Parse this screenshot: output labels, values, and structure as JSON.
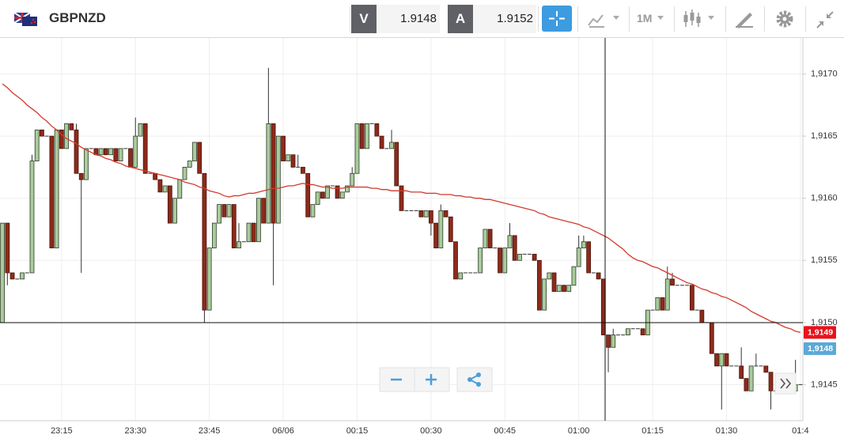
{
  "toolbar": {
    "symbol": "GBPNZD",
    "bid_label": "V",
    "bid": 1.9148,
    "ask_label": "A",
    "ask": 1.9152,
    "timeframe": "1M"
  },
  "chart_data": {
    "type": "candlestick",
    "categories": [
      null,
      null,
      null,
      null,
      null,
      null,
      null,
      null,
      null,
      null,
      null,
      null,
      "23:15",
      null,
      null,
      null,
      null,
      null,
      null,
      null,
      null,
      null,
      null,
      null,
      null,
      null,
      null,
      "23:30",
      null,
      null,
      null,
      null,
      null,
      null,
      null,
      null,
      null,
      null,
      null,
      null,
      null,
      null,
      "23:45",
      null,
      null,
      null,
      null,
      null,
      null,
      null,
      null,
      null,
      null,
      null,
      null,
      null,
      null,
      "06/06",
      null,
      null,
      null,
      null,
      null,
      null,
      null,
      null,
      null,
      null,
      null,
      null,
      null,
      null,
      "00:15",
      null,
      null,
      null,
      null,
      null,
      null,
      null,
      null,
      null,
      null,
      null,
      null,
      null,
      null,
      "00:30",
      null,
      null,
      null,
      null,
      null,
      null,
      null,
      null,
      null,
      null,
      null,
      null,
      null,
      null,
      "00:45",
      null,
      null,
      null,
      null,
      null,
      null,
      null,
      null,
      null,
      null,
      null,
      null,
      null,
      null,
      "01:00",
      null,
      null,
      null,
      null,
      null,
      null,
      null,
      null,
      null,
      null,
      null,
      null,
      null,
      null,
      "01:15",
      null,
      null,
      null,
      null,
      null,
      null,
      null,
      null,
      null,
      null,
      null,
      null,
      null,
      null,
      "01:30",
      null,
      null,
      null,
      null,
      null,
      null,
      null,
      null,
      null,
      null,
      null,
      null,
      null,
      null,
      "01:4"
    ],
    "ohlc": [
      [
        1.915,
        1.9158,
        1.915,
        1.9158
      ],
      [
        1.9158,
        1.9158,
        1.9153,
        1.9154
      ],
      [
        1.9154,
        1.9154,
        1.91535,
        1.91535
      ],
      [
        1.91535,
        1.91535,
        1.91535,
        1.91535
      ],
      [
        1.91535,
        1.9154,
        1.91535,
        1.9154
      ],
      [
        1.9154,
        1.9154,
        1.9154,
        1.9154
      ],
      [
        1.9154,
        1.91635,
        1.9154,
        1.9163
      ],
      [
        1.9163,
        1.91655,
        1.9163,
        1.91655
      ],
      [
        1.91655,
        1.91655,
        1.9165,
        1.9165
      ],
      [
        1.9165,
        1.9165,
        1.9165,
        1.9165
      ],
      [
        1.9165,
        1.9165,
        1.9156,
        1.9156
      ],
      [
        1.9156,
        1.91655,
        1.9156,
        1.91655
      ],
      [
        1.91655,
        1.91655,
        1.9164,
        1.9164
      ],
      [
        1.9164,
        1.9166,
        1.9164,
        1.9166
      ],
      [
        1.9166,
        1.9166,
        1.91655,
        1.91655
      ],
      [
        1.91655,
        1.9166,
        1.9162,
        1.9162
      ],
      [
        1.9162,
        1.9162,
        1.9154,
        1.91615
      ],
      [
        1.91615,
        1.9164,
        1.91615,
        1.9164
      ],
      [
        1.9164,
        1.9164,
        1.9164,
        1.9164
      ],
      [
        1.9164,
        1.9164,
        1.91635,
        1.91635
      ],
      [
        1.91635,
        1.9164,
        1.91635,
        1.9164
      ],
      [
        1.9164,
        1.9164,
        1.91635,
        1.91635
      ],
      [
        1.91635,
        1.9164,
        1.91635,
        1.9164
      ],
      [
        1.9164,
        1.9164,
        1.9163,
        1.9163
      ],
      [
        1.9163,
        1.9164,
        1.9163,
        1.9164
      ],
      [
        1.9164,
        1.9164,
        1.9164,
        1.9164
      ],
      [
        1.9164,
        1.9164,
        1.91625,
        1.91625
      ],
      [
        1.91625,
        1.91665,
        1.91625,
        1.9165
      ],
      [
        1.9165,
        1.9166,
        1.9165,
        1.9166
      ],
      [
        1.9166,
        1.9166,
        1.9162,
        1.9162
      ],
      [
        1.9162,
        1.9162,
        1.9162,
        1.9162
      ],
      [
        1.9162,
        1.9162,
        1.91615,
        1.91615
      ],
      [
        1.91615,
        1.91615,
        1.91605,
        1.91605
      ],
      [
        1.91605,
        1.9161,
        1.91605,
        1.9161
      ],
      [
        1.9161,
        1.9161,
        1.9158,
        1.9158
      ],
      [
        1.9158,
        1.916,
        1.9158,
        1.916
      ],
      [
        1.916,
        1.91615,
        1.916,
        1.91615
      ],
      [
        1.91615,
        1.91625,
        1.91615,
        1.91625
      ],
      [
        1.91625,
        1.9163,
        1.91625,
        1.9163
      ],
      [
        1.9163,
        1.91645,
        1.9163,
        1.91645
      ],
      [
        1.91645,
        1.91645,
        1.9162,
        1.9162
      ],
      [
        1.9162,
        1.9162,
        1.915,
        1.9151
      ],
      [
        1.9151,
        1.9156,
        1.9151,
        1.9156
      ],
      [
        1.9156,
        1.9158,
        1.9156,
        1.9158
      ],
      [
        1.9158,
        1.91595,
        1.9158,
        1.91595
      ],
      [
        1.91595,
        1.91595,
        1.91585,
        1.91585
      ],
      [
        1.91585,
        1.91595,
        1.91585,
        1.91595
      ],
      [
        1.91595,
        1.91595,
        1.9156,
        1.9156
      ],
      [
        1.9156,
        1.9158,
        1.9156,
        1.91565
      ],
      [
        1.91565,
        1.91565,
        1.91565,
        1.91565
      ],
      [
        1.91565,
        1.9158,
        1.91565,
        1.9158
      ],
      [
        1.9158,
        1.9158,
        1.91565,
        1.91565
      ],
      [
        1.91565,
        1.916,
        1.91565,
        1.916
      ],
      [
        1.916,
        1.916,
        1.9158,
        1.9158
      ],
      [
        1.9158,
        1.91705,
        1.9158,
        1.9166
      ],
      [
        1.9166,
        1.9166,
        1.9153,
        1.9158
      ],
      [
        1.9158,
        1.9165,
        1.9158,
        1.9165
      ],
      [
        1.9165,
        1.9165,
        1.9163,
        1.9163
      ],
      [
        1.9163,
        1.91635,
        1.9163,
        1.91635
      ],
      [
        1.91635,
        1.91635,
        1.91625,
        1.91625
      ],
      [
        1.91625,
        1.91635,
        1.91625,
        1.91625
      ],
      [
        1.91625,
        1.91625,
        1.9162,
        1.9162
      ],
      [
        1.9162,
        1.9162,
        1.91585,
        1.91585
      ],
      [
        1.91585,
        1.91595,
        1.91585,
        1.91595
      ],
      [
        1.91595,
        1.91605,
        1.91595,
        1.91605
      ],
      [
        1.91605,
        1.91605,
        1.916,
        1.916
      ],
      [
        1.916,
        1.9161,
        1.916,
        1.9161
      ],
      [
        1.9161,
        1.9161,
        1.9161,
        1.9161
      ],
      [
        1.9161,
        1.9161,
        1.916,
        1.916
      ],
      [
        1.916,
        1.91605,
        1.916,
        1.91605
      ],
      [
        1.91605,
        1.9161,
        1.91605,
        1.9161
      ],
      [
        1.9161,
        1.91625,
        1.9161,
        1.9162
      ],
      [
        1.9162,
        1.9166,
        1.9162,
        1.9166
      ],
      [
        1.9166,
        1.9166,
        1.9164,
        1.9164
      ],
      [
        1.9164,
        1.9166,
        1.9164,
        1.9166
      ],
      [
        1.9166,
        1.9166,
        1.9166,
        1.9166
      ],
      [
        1.9166,
        1.9166,
        1.9165,
        1.9165
      ],
      [
        1.9165,
        1.9165,
        1.9164,
        1.9164
      ],
      [
        1.9164,
        1.9164,
        1.9164,
        1.9164
      ],
      [
        1.9164,
        1.91655,
        1.9164,
        1.91645
      ],
      [
        1.91645,
        1.91645,
        1.9161,
        1.9161
      ],
      [
        1.9161,
        1.9161,
        1.9159,
        1.9159
      ],
      [
        1.9159,
        1.9159,
        1.9159,
        1.9159
      ],
      [
        1.9159,
        1.9159,
        1.9159,
        1.9159
      ],
      [
        1.9159,
        1.9159,
        1.9159,
        1.9159
      ],
      [
        1.9159,
        1.9159,
        1.91585,
        1.91585
      ],
      [
        1.91585,
        1.9159,
        1.91585,
        1.9159
      ],
      [
        1.9159,
        1.9159,
        1.9157,
        1.9158
      ],
      [
        1.9158,
        1.9158,
        1.9156,
        1.9156
      ],
      [
        1.9156,
        1.91595,
        1.9156,
        1.9159
      ],
      [
        1.9159,
        1.9159,
        1.91585,
        1.91585
      ],
      [
        1.91585,
        1.91585,
        1.91565,
        1.91565
      ],
      [
        1.91565,
        1.91565,
        1.91535,
        1.91535
      ],
      [
        1.91535,
        1.9154,
        1.91535,
        1.9154
      ],
      [
        1.9154,
        1.9154,
        1.9154,
        1.9154
      ],
      [
        1.9154,
        1.9154,
        1.9154,
        1.9154
      ],
      [
        1.9154,
        1.9154,
        1.9154,
        1.9154
      ],
      [
        1.9154,
        1.9156,
        1.9154,
        1.9156
      ],
      [
        1.9156,
        1.91575,
        1.9156,
        1.91575
      ],
      [
        1.91575,
        1.91575,
        1.9156,
        1.9156
      ],
      [
        1.9156,
        1.9156,
        1.9156,
        1.9156
      ],
      [
        1.9156,
        1.9156,
        1.9154,
        1.9154
      ],
      [
        1.9154,
        1.9156,
        1.9154,
        1.9156
      ],
      [
        1.9156,
        1.9158,
        1.9156,
        1.9157
      ],
      [
        1.9157,
        1.9157,
        1.9155,
        1.9155
      ],
      [
        1.9155,
        1.91555,
        1.9155,
        1.91555
      ],
      [
        1.91555,
        1.91555,
        1.91555,
        1.91555
      ],
      [
        1.91555,
        1.91555,
        1.91555,
        1.91555
      ],
      [
        1.91555,
        1.91555,
        1.9155,
        1.9155
      ],
      [
        1.9155,
        1.9155,
        1.9151,
        1.9151
      ],
      [
        1.9151,
        1.91535,
        1.9151,
        1.91535
      ],
      [
        1.91535,
        1.9154,
        1.91535,
        1.9154
      ],
      [
        1.9154,
        1.9154,
        1.91525,
        1.91525
      ],
      [
        1.91525,
        1.9153,
        1.91525,
        1.9153
      ],
      [
        1.9153,
        1.9153,
        1.91525,
        1.91525
      ],
      [
        1.91525,
        1.9153,
        1.91525,
        1.9153
      ],
      [
        1.9153,
        1.91545,
        1.9153,
        1.91545
      ],
      [
        1.91545,
        1.9157,
        1.91545,
        1.9156
      ],
      [
        1.9156,
        1.9157,
        1.9156,
        1.91565
      ],
      [
        1.91565,
        1.91565,
        1.9154,
        1.9154
      ],
      [
        1.9154,
        1.9154,
        1.9154,
        1.9154
      ],
      [
        1.9154,
        1.9154,
        1.91535,
        1.91535
      ],
      [
        1.91535,
        1.91535,
        1.9149,
        1.9149
      ],
      [
        1.9149,
        1.9149,
        1.9146,
        1.9148
      ],
      [
        1.9148,
        1.91495,
        1.9148,
        1.9149
      ],
      [
        1.9149,
        1.9149,
        1.9149,
        1.9149
      ],
      [
        1.9149,
        1.9149,
        1.9149,
        1.9149
      ],
      [
        1.9149,
        1.91495,
        1.9149,
        1.91495
      ],
      [
        1.91495,
        1.91495,
        1.91495,
        1.91495
      ],
      [
        1.91495,
        1.91495,
        1.91495,
        1.91495
      ],
      [
        1.91495,
        1.91495,
        1.9149,
        1.9149
      ],
      [
        1.9149,
        1.9151,
        1.9149,
        1.9151
      ],
      [
        1.9151,
        1.9151,
        1.9151,
        1.9151
      ],
      [
        1.9151,
        1.9152,
        1.9151,
        1.9152
      ],
      [
        1.9152,
        1.9152,
        1.9151,
        1.9151
      ],
      [
        1.9151,
        1.91545,
        1.9151,
        1.91535
      ],
      [
        1.91535,
        1.9154,
        1.9153,
        1.9153
      ],
      [
        1.9153,
        1.9153,
        1.9153,
        1.9153
      ],
      [
        1.9153,
        1.9153,
        1.9153,
        1.9153
      ],
      [
        1.9153,
        1.9153,
        1.9153,
        1.9153
      ],
      [
        1.9153,
        1.9153,
        1.9151,
        1.9151
      ],
      [
        1.9151,
        1.9151,
        1.9151,
        1.9151
      ],
      [
        1.9151,
        1.9151,
        1.915,
        1.915
      ],
      [
        1.915,
        1.915,
        1.915,
        1.915
      ],
      [
        1.915,
        1.915,
        1.91475,
        1.91475
      ],
      [
        1.91475,
        1.91475,
        1.91465,
        1.91465
      ],
      [
        1.91465,
        1.91475,
        1.9143,
        1.91475
      ],
      [
        1.91475,
        1.91475,
        1.91465,
        1.91465
      ],
      [
        1.91465,
        1.91465,
        1.91465,
        1.91465
      ],
      [
        1.91465,
        1.91465,
        1.91465,
        1.91465
      ],
      [
        1.91465,
        1.9148,
        1.91455,
        1.91455
      ],
      [
        1.91455,
        1.91455,
        1.91445,
        1.91445
      ],
      [
        1.91445,
        1.91465,
        1.91445,
        1.91465
      ],
      [
        1.91465,
        1.91475,
        1.91465,
        1.91465
      ],
      [
        1.91465,
        1.91465,
        1.91465,
        1.91465
      ],
      [
        1.91465,
        1.91465,
        1.9146,
        1.9146
      ],
      [
        1.9146,
        1.9146,
        1.9143,
        1.91445
      ],
      [
        1.91445,
        1.91445,
        1.91445,
        1.91445
      ],
      [
        1.91445,
        1.91445,
        1.91445,
        1.91445
      ],
      [
        1.91445,
        1.91445,
        1.91445,
        1.91445
      ],
      [
        1.91445,
        1.91445,
        1.91445,
        1.91445
      ],
      [
        1.91445,
        1.9147,
        1.91445,
        1.9145
      ],
      [
        1.9145,
        1.9145,
        1.9145,
        1.9145
      ]
    ],
    "up_color": "#a9cc9b",
    "down_color": "#8d2a1b",
    "lines": [
      {
        "color": "#d23a2c",
        "values": [
          1.91692,
          1.91689,
          1.91685,
          1.91682,
          1.91679,
          1.91675,
          1.91672,
          1.91669,
          1.91665,
          1.91662,
          1.91658,
          1.91655,
          1.91651,
          1.91648,
          1.91646,
          1.91644,
          1.91641,
          1.91639,
          1.91637,
          1.91635,
          1.91634,
          1.91632,
          1.91631,
          1.91629,
          1.91628,
          1.91626,
          1.91625,
          1.91624,
          1.91623,
          1.91622,
          1.91621,
          1.9162,
          1.91619,
          1.91618,
          1.91617,
          1.91616,
          1.91615,
          1.91613,
          1.91612,
          1.91611,
          1.91609,
          1.91608,
          1.91606,
          1.91605,
          1.91604,
          1.91602,
          1.91601,
          1.91602,
          1.91602,
          1.91603,
          1.91604,
          1.91604,
          1.91605,
          1.91606,
          1.91607,
          1.91608,
          1.91608,
          1.91609,
          1.9161,
          1.9161,
          1.91611,
          1.91612,
          1.91611,
          1.91611,
          1.9161,
          1.91609,
          1.91609,
          1.91608,
          1.91608,
          1.91608,
          1.91609,
          1.91609,
          1.91609,
          1.91609,
          1.91609,
          1.91608,
          1.91608,
          1.91607,
          1.91607,
          1.91606,
          1.91606,
          1.91606,
          1.91606,
          1.91605,
          1.91605,
          1.91605,
          1.91604,
          1.91604,
          1.91604,
          1.91603,
          1.91603,
          1.91603,
          1.91602,
          1.91602,
          1.91601,
          1.91601,
          1.916,
          1.916,
          1.91599,
          1.91599,
          1.91598,
          1.91597,
          1.91596,
          1.91595,
          1.91594,
          1.91593,
          1.91592,
          1.91591,
          1.9159,
          1.91588,
          1.91587,
          1.91585,
          1.91584,
          1.91583,
          1.91582,
          1.91581,
          1.9158,
          1.91579,
          1.91577,
          1.91576,
          1.91574,
          1.91572,
          1.9157,
          1.91568,
          1.91565,
          1.91562,
          1.91559,
          1.91555,
          1.91552,
          1.9155,
          1.91549,
          1.91547,
          1.91545,
          1.91544,
          1.91542,
          1.9154,
          1.91538,
          1.91536,
          1.91534,
          1.91532,
          1.91531,
          1.91529,
          1.91527,
          1.91526,
          1.91524,
          1.91523,
          1.91521,
          1.9152,
          1.91518,
          1.91516,
          1.91514,
          1.91512,
          1.91509,
          1.91507,
          1.91505,
          1.91503,
          1.91501,
          1.915,
          1.91498,
          1.91496,
          1.91495,
          1.91493,
          1.91492
        ]
      }
    ],
    "ylim": [
      1.91421,
      1.91729
    ],
    "yticks": [
      {
        "value": 1.9145,
        "label": "1,9145"
      },
      {
        "value": 1.915,
        "label": "1,9150"
      },
      {
        "value": 1.9155,
        "label": "1,9155"
      },
      {
        "value": 1.916,
        "label": "1,9160"
      },
      {
        "value": 1.9165,
        "label": "1,9165"
      },
      {
        "value": 1.917,
        "label": "1,9170"
      }
    ],
    "grid": true,
    "price_labels": [
      {
        "value": 1.91492,
        "label": "1,9149",
        "color": "#e8121b"
      },
      {
        "value": 1.91479,
        "label": "1,9148",
        "color": "#5aa9d6"
      }
    ]
  }
}
